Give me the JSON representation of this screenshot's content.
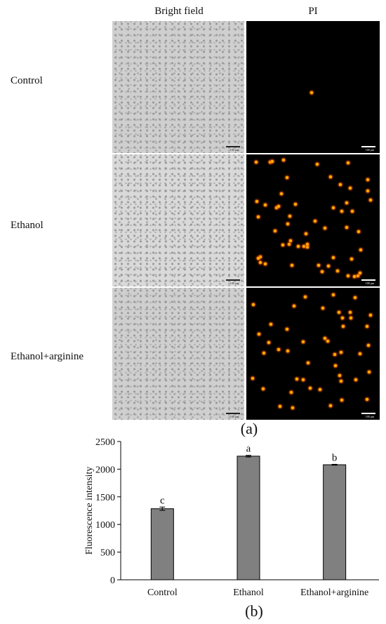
{
  "panel_a": {
    "columns": [
      "Bright field",
      "PI"
    ],
    "rows": [
      "Control",
      "Ethanol",
      "Ethanol+arginine"
    ],
    "scale_bar_text": "100 μm",
    "label": "(a)"
  },
  "panel_b": {
    "label": "(b)"
  },
  "chart_data": {
    "type": "bar",
    "categories": [
      "Control",
      "Ethanol",
      "Ethanol+arginine"
    ],
    "values": [
      1285,
      2235,
      2080
    ],
    "errors": [
      30,
      15,
      8
    ],
    "significance": [
      "c",
      "a",
      "b"
    ],
    "ylabel": "Fluorescence intensity",
    "xlabel": "",
    "ylim": [
      0,
      2500
    ],
    "yticks": [
      0,
      500,
      1000,
      1500,
      2000,
      2500
    ],
    "bar_color": "#808080",
    "grid": false
  }
}
